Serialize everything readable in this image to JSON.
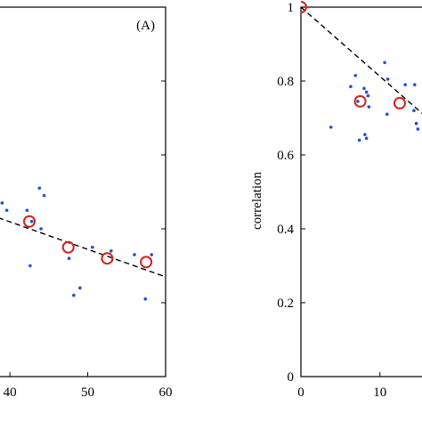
{
  "chart_data": [
    {
      "panel_label": "(A)",
      "type": "scatter",
      "xlabel": "",
      "ylabel": "",
      "x_tick_labels": [
        "40",
        "50",
        "60"
      ],
      "x_ticks": [
        40,
        50,
        60
      ],
      "xlim": [
        38.5,
        60
      ],
      "ylim": [
        0.0,
        1.0
      ],
      "series": [
        {
          "kind": "scatter-dots",
          "color": "#1f4fd8",
          "points": [
            [
              39.0,
              0.47
            ],
            [
              39.6,
              0.45
            ],
            [
              42.2,
              0.45
            ],
            [
              42.8,
              0.42
            ],
            [
              43.8,
              0.51
            ],
            [
              44.4,
              0.49
            ],
            [
              44.0,
              0.4
            ],
            [
              42.6,
              0.3
            ],
            [
              48.2,
              0.22
            ],
            [
              49.0,
              0.24
            ],
            [
              50.6,
              0.35
            ],
            [
              47.6,
              0.32
            ],
            [
              53.0,
              0.34
            ],
            [
              57.4,
              0.21
            ],
            [
              58.2,
              0.33
            ],
            [
              56.0,
              0.33
            ]
          ]
        },
        {
          "kind": "mean-circles",
          "color": "#d42020",
          "points": [
            [
              42.5,
              0.42
            ],
            [
              47.5,
              0.35
            ],
            [
              52.5,
              0.32
            ],
            [
              57.5,
              0.31
            ]
          ]
        },
        {
          "kind": "dashed-fit",
          "color": "#000000",
          "points": [
            [
              38.5,
              0.43
            ],
            [
              60,
              0.27
            ]
          ]
        }
      ]
    },
    {
      "panel_label": "",
      "type": "scatter",
      "xlabel": "",
      "ylabel": "correlation",
      "x_tick_labels": [
        "0",
        "10"
      ],
      "x_ticks": [
        0,
        10
      ],
      "y_tick_labels": [
        "0",
        "0.2",
        "0.4",
        "0.6",
        "0.8",
        "1"
      ],
      "y_ticks": [
        0,
        0.2,
        0.4,
        0.6,
        0.8,
        1.0
      ],
      "xlim": [
        0,
        16
      ],
      "ylim": [
        0.0,
        1.0
      ],
      "series": [
        {
          "kind": "scatter-dots",
          "color": "#1f4fd8",
          "points": [
            [
              3.8,
              0.675
            ],
            [
              6.3,
              0.785
            ],
            [
              6.9,
              0.815
            ],
            [
              7.2,
              0.745
            ],
            [
              7.4,
              0.64
            ],
            [
              8.0,
              0.78
            ],
            [
              8.3,
              0.77
            ],
            [
              8.5,
              0.76
            ],
            [
              8.6,
              0.73
            ],
            [
              8.3,
              0.645
            ],
            [
              8.1,
              0.655
            ],
            [
              10.6,
              0.85
            ],
            [
              11.0,
              0.805
            ],
            [
              10.9,
              0.71
            ],
            [
              13.2,
              0.79
            ],
            [
              14.4,
              0.79
            ],
            [
              14.6,
              0.685
            ],
            [
              14.8,
              0.67
            ],
            [
              14.3,
              0.72
            ]
          ]
        },
        {
          "kind": "mean-circles",
          "color": "#d42020",
          "points": [
            [
              0,
              1.0
            ],
            [
              7.5,
              0.745
            ],
            [
              12.5,
              0.74
            ]
          ]
        },
        {
          "kind": "dashed-fit",
          "color": "#000000",
          "points": [
            [
              0,
              1.0
            ],
            [
              16,
              0.7
            ]
          ]
        }
      ]
    }
  ]
}
